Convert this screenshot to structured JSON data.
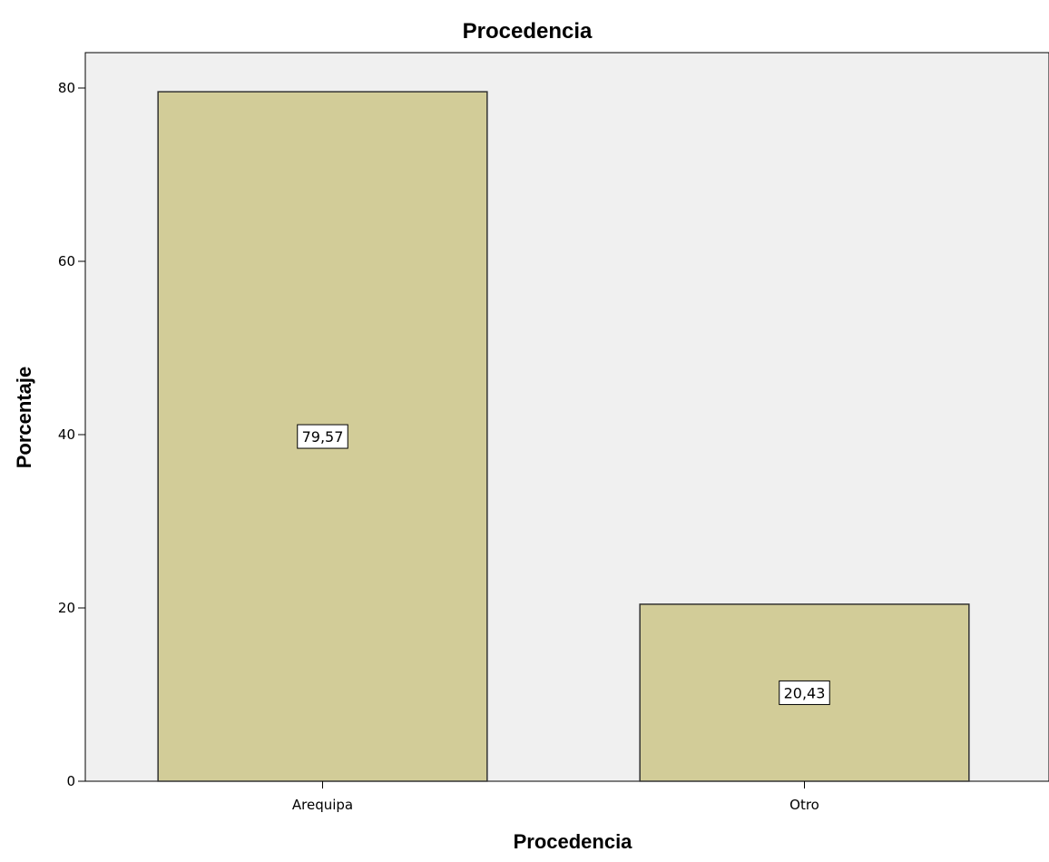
{
  "chart_data": {
    "type": "bar",
    "title": "Procedencia",
    "xlabel": "Procedencia",
    "ylabel": "Porcentaje",
    "categories": [
      "Arequipa",
      "Otro"
    ],
    "values": [
      79.57,
      20.43
    ],
    "data_labels": [
      "79,57",
      "20,43"
    ],
    "ylim": [
      0,
      84
    ],
    "yticks": [
      0,
      20,
      40,
      60,
      80
    ],
    "ytick_labels": [
      "0",
      "20",
      "40",
      "60",
      "80"
    ],
    "grid": false,
    "colors": {
      "bar_fill": "#d2cc98",
      "bar_stroke": "#333333",
      "plot_background": "#f0f0f0",
      "label_box": "#ffffff"
    }
  }
}
